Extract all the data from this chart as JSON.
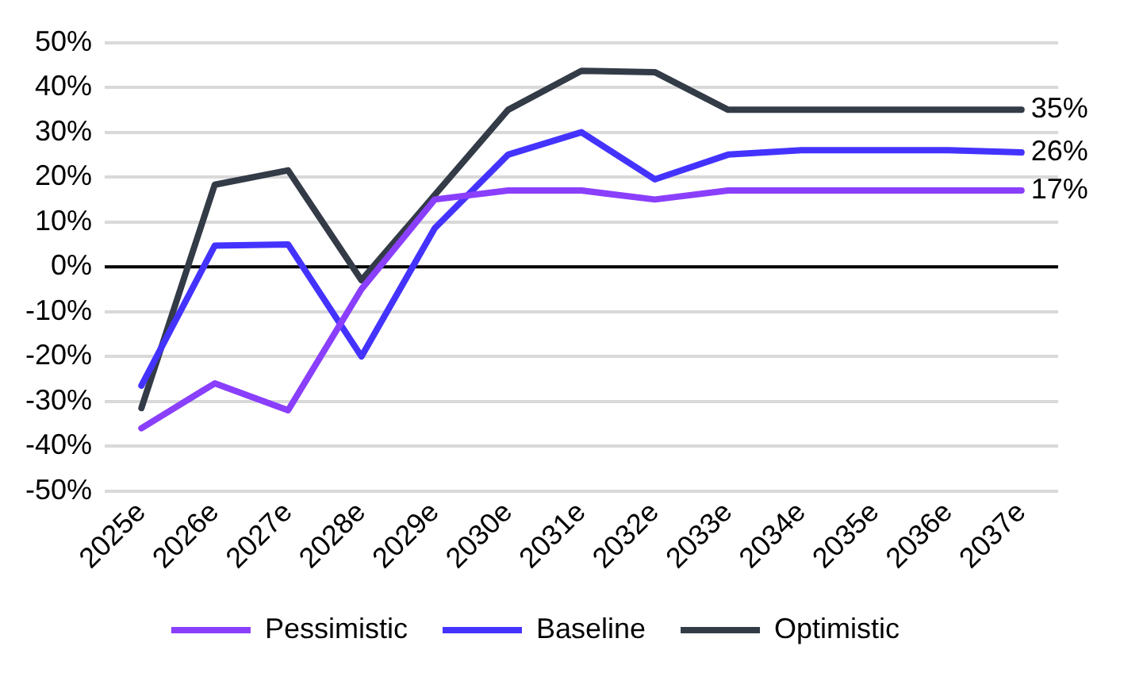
{
  "chart_data": {
    "type": "line",
    "categories": [
      "2025e",
      "2026e",
      "2027e",
      "2028e",
      "2029e",
      "2030e",
      "2031e",
      "2032e",
      "2033e",
      "2034e",
      "2035e",
      "2036e",
      "2037e"
    ],
    "series": [
      {
        "name": "Pessimistic",
        "color": "#8a3ffc",
        "values": [
          -36,
          -26,
          -32,
          -5,
          15,
          17,
          17,
          15,
          17,
          17,
          17,
          17,
          17
        ],
        "value_labels": [
          null,
          null,
          null,
          null,
          null,
          null,
          null,
          null,
          null,
          null,
          null,
          null,
          "17%"
        ]
      },
      {
        "name": "Baseline",
        "color": "#4433ff",
        "values": [
          -26.5,
          4.7,
          5,
          -20,
          8.6,
          25,
          30,
          19.5,
          25,
          26,
          26,
          26,
          25.5
        ],
        "value_labels": [
          null,
          null,
          null,
          null,
          null,
          null,
          null,
          null,
          null,
          null,
          null,
          null,
          "26%"
        ]
      },
      {
        "name": "Optimistic",
        "color": "#333b47",
        "values": [
          -31.5,
          18.3,
          21.5,
          -3,
          16,
          35,
          43.7,
          43.4,
          35,
          35,
          35,
          35,
          35
        ],
        "value_labels": [
          null,
          null,
          null,
          null,
          null,
          null,
          null,
          null,
          null,
          null,
          null,
          null,
          "35%"
        ]
      }
    ],
    "ylim": [
      -50,
      50
    ],
    "yticks": [
      {
        "value": -50,
        "label": "-50%"
      },
      {
        "value": -40,
        "label": "-40%"
      },
      {
        "value": -30,
        "label": "-30%"
      },
      {
        "value": -20,
        "label": "-20%"
      },
      {
        "value": -10,
        "label": "-10%"
      },
      {
        "value": 0,
        "label": "0%"
      },
      {
        "value": 10,
        "label": "10%"
      },
      {
        "value": 20,
        "label": "20%"
      },
      {
        "value": 30,
        "label": "30%"
      },
      {
        "value": 40,
        "label": "40%"
      },
      {
        "value": 50,
        "label": "50%"
      }
    ],
    "ref_lines": [
      {
        "axis": "y",
        "value": 0,
        "color": "#000000"
      }
    ],
    "grid": "y",
    "legend": "bottom",
    "marker": "none",
    "line_style": "solid"
  }
}
